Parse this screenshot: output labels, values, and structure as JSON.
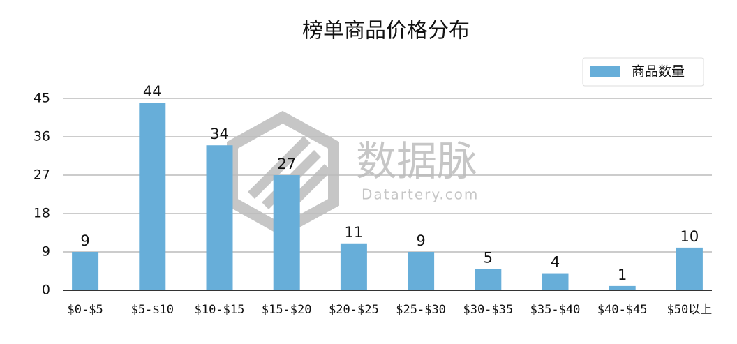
{
  "chart_data": {
    "type": "bar",
    "title": "榜单商品价格分布",
    "categories": [
      "$0-$5",
      "$5-$10",
      "$10-$15",
      "$15-$20",
      "$20-$25",
      "$25-$30",
      "$30-$35",
      "$35-$40",
      "$40-$45",
      "$50以上"
    ],
    "series": [
      {
        "name": "商品数量",
        "color": "#67aed9",
        "values": [
          9,
          44,
          34,
          27,
          11,
          9,
          5,
          4,
          1,
          10
        ]
      }
    ],
    "ylim": [
      0,
      45
    ],
    "yticks": [
      0,
      9,
      18,
      27,
      36,
      45
    ],
    "grid": true,
    "legend": "top-right",
    "watermark": {
      "name": "数据脉",
      "site": "Datartery.com"
    }
  }
}
